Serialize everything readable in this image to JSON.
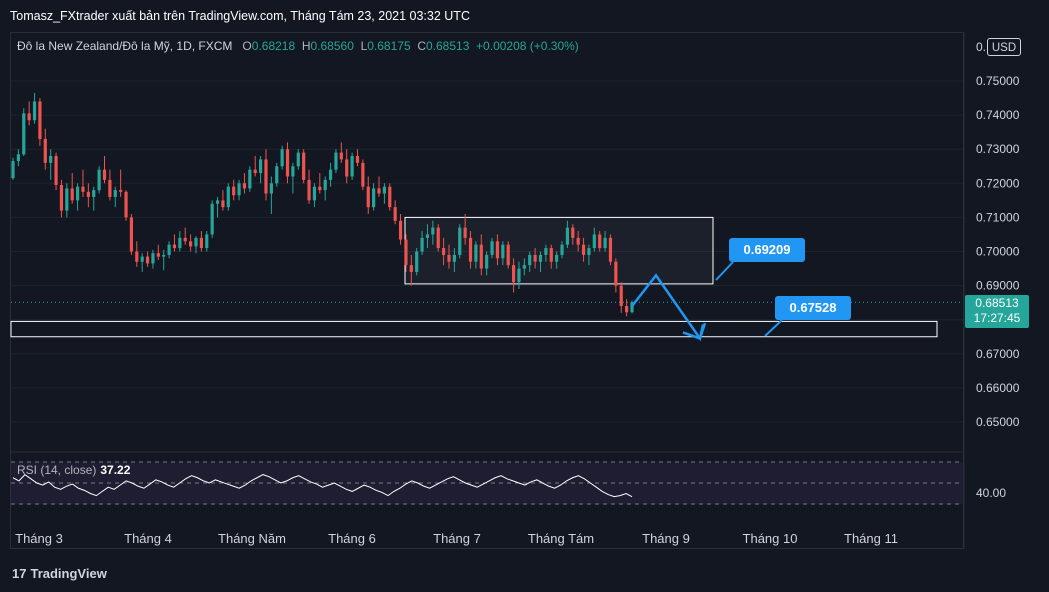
{
  "header": {
    "author_line": "Tomasz_FXtrader xuất bản trên TradingView.com, Tháng Tám 23, 2021 03:32 UTC"
  },
  "legend": {
    "symbol": "Đô la New Zealand/Đô la Mỹ, 1D, FXCM",
    "o_label": "O",
    "o_value": "0.68218",
    "h_label": "H",
    "h_value": "0.68560",
    "l_label": "L",
    "l_value": "0.68175",
    "c_label": "C",
    "c_value": "0.68513",
    "change": "+0.00208 (+0.30%)"
  },
  "price_axis": {
    "currency": "USD",
    "top_label": "0.",
    "labels": [
      "0.75000",
      "0.74000",
      "0.73000",
      "0.72000",
      "0.71000",
      "0.70000",
      "0.69000",
      "0.67000",
      "0.66000",
      "0.65000"
    ],
    "current_price": "0.68513",
    "countdown": "17:27:45"
  },
  "time_axis": [
    "Tháng 3",
    "Tháng 4",
    "Tháng Năm",
    "Tháng 6",
    "Tháng 7",
    "Tháng Tám",
    "Tháng 9",
    "Tháng 10",
    "Tháng 11"
  ],
  "annotations": {
    "callout_upper": "0.69209",
    "callout_lower": "0.67528"
  },
  "rsi": {
    "label": "RSI (14, close)",
    "value": "37.22",
    "axis_label": "40.00"
  },
  "footer": {
    "logo_text": "TradingView",
    "logo_mark": "17"
  },
  "colors": {
    "up": "#26a69a",
    "down": "#ef5350",
    "accent": "#2196f3",
    "background": "#131722"
  },
  "chart_data": {
    "type": "candlestick",
    "symbol": "NZD/USD",
    "timeframe": "1D",
    "ylim": [
      0.643,
      0.755
    ],
    "candles_ohlc": [
      [
        0.7215,
        0.7275,
        0.721,
        0.7265
      ],
      [
        0.7265,
        0.73,
        0.725,
        0.7285
      ],
      [
        0.7285,
        0.742,
        0.728,
        0.7405
      ],
      [
        0.7405,
        0.744,
        0.737,
        0.7385
      ],
      [
        0.7385,
        0.7465,
        0.7375,
        0.744
      ],
      [
        0.744,
        0.745,
        0.731,
        0.733
      ],
      [
        0.733,
        0.736,
        0.724,
        0.726
      ],
      [
        0.726,
        0.73,
        0.721,
        0.728
      ],
      [
        0.728,
        0.729,
        0.718,
        0.7195
      ],
      [
        0.7195,
        0.721,
        0.71,
        0.712
      ],
      [
        0.712,
        0.72,
        0.71,
        0.7185
      ],
      [
        0.7185,
        0.723,
        0.714,
        0.715
      ],
      [
        0.715,
        0.72,
        0.712,
        0.719
      ],
      [
        0.719,
        0.724,
        0.716,
        0.7175
      ],
      [
        0.7175,
        0.72,
        0.713,
        0.716
      ],
      [
        0.716,
        0.719,
        0.712,
        0.718
      ],
      [
        0.718,
        0.725,
        0.717,
        0.724
      ],
      [
        0.724,
        0.728,
        0.72,
        0.721
      ],
      [
        0.721,
        0.724,
        0.715,
        0.716
      ],
      [
        0.716,
        0.719,
        0.713,
        0.718
      ],
      [
        0.718,
        0.724,
        0.716,
        0.7175
      ],
      [
        0.7175,
        0.718,
        0.709,
        0.71
      ],
      [
        0.71,
        0.711,
        0.699,
        0.7
      ],
      [
        0.7,
        0.703,
        0.6955,
        0.697
      ],
      [
        0.697,
        0.6995,
        0.694,
        0.6985
      ],
      [
        0.6985,
        0.7,
        0.6955,
        0.6965
      ],
      [
        0.6965,
        0.7005,
        0.695,
        0.6995
      ],
      [
        0.6995,
        0.702,
        0.6975,
        0.6985
      ],
      [
        0.6985,
        0.7005,
        0.6945,
        0.699
      ],
      [
        0.699,
        0.703,
        0.698,
        0.702
      ],
      [
        0.702,
        0.705,
        0.7,
        0.701
      ],
      [
        0.701,
        0.706,
        0.7,
        0.704
      ],
      [
        0.704,
        0.707,
        0.702,
        0.703
      ],
      [
        0.703,
        0.705,
        0.7,
        0.7015
      ],
      [
        0.7015,
        0.7045,
        0.6995,
        0.704
      ],
      [
        0.704,
        0.706,
        0.7,
        0.701
      ],
      [
        0.701,
        0.706,
        0.7,
        0.705
      ],
      [
        0.705,
        0.715,
        0.704,
        0.714
      ],
      [
        0.714,
        0.716,
        0.71,
        0.715
      ],
      [
        0.715,
        0.718,
        0.712,
        0.713
      ],
      [
        0.713,
        0.72,
        0.712,
        0.719
      ],
      [
        0.719,
        0.721,
        0.715,
        0.7165
      ],
      [
        0.7165,
        0.721,
        0.715,
        0.72
      ],
      [
        0.72,
        0.723,
        0.717,
        0.7185
      ],
      [
        0.7185,
        0.725,
        0.7175,
        0.724
      ],
      [
        0.724,
        0.728,
        0.722,
        0.723
      ],
      [
        0.723,
        0.728,
        0.72,
        0.727
      ],
      [
        0.727,
        0.73,
        0.715,
        0.717
      ],
      [
        0.717,
        0.722,
        0.711,
        0.72
      ],
      [
        0.72,
        0.726,
        0.719,
        0.725
      ],
      [
        0.725,
        0.731,
        0.724,
        0.73
      ],
      [
        0.73,
        0.732,
        0.72,
        0.722
      ],
      [
        0.722,
        0.726,
        0.717,
        0.725
      ],
      [
        0.725,
        0.73,
        0.724,
        0.729
      ],
      [
        0.729,
        0.73,
        0.72,
        0.721
      ],
      [
        0.721,
        0.724,
        0.714,
        0.715
      ],
      [
        0.715,
        0.72,
        0.713,
        0.719
      ],
      [
        0.719,
        0.723,
        0.717,
        0.718
      ],
      [
        0.718,
        0.722,
        0.715,
        0.721
      ],
      [
        0.721,
        0.726,
        0.719,
        0.724
      ],
      [
        0.724,
        0.73,
        0.723,
        0.729
      ],
      [
        0.729,
        0.732,
        0.726,
        0.727
      ],
      [
        0.727,
        0.73,
        0.72,
        0.722
      ],
      [
        0.722,
        0.729,
        0.721,
        0.728
      ],
      [
        0.728,
        0.73,
        0.725,
        0.726
      ],
      [
        0.726,
        0.727,
        0.718,
        0.719
      ],
      [
        0.719,
        0.722,
        0.711,
        0.713
      ],
      [
        0.713,
        0.72,
        0.712,
        0.7185
      ],
      [
        0.7185,
        0.722,
        0.716,
        0.717
      ],
      [
        0.717,
        0.72,
        0.714,
        0.719
      ],
      [
        0.719,
        0.72,
        0.712,
        0.713
      ],
      [
        0.713,
        0.715,
        0.708,
        0.709
      ],
      [
        0.709,
        0.711,
        0.702,
        0.7035
      ],
      [
        0.7035,
        0.705,
        0.694,
        0.696
      ],
      [
        0.696,
        0.699,
        0.69,
        0.694
      ],
      [
        0.694,
        0.701,
        0.693,
        0.7
      ],
      [
        0.7,
        0.706,
        0.699,
        0.704
      ],
      [
        0.704,
        0.708,
        0.701,
        0.705
      ],
      [
        0.705,
        0.709,
        0.702,
        0.707
      ],
      [
        0.707,
        0.708,
        0.7,
        0.701
      ],
      [
        0.701,
        0.704,
        0.696,
        0.699
      ],
      [
        0.699,
        0.702,
        0.695,
        0.697
      ],
      [
        0.697,
        0.701,
        0.694,
        0.699
      ],
      [
        0.699,
        0.708,
        0.698,
        0.707
      ],
      [
        0.707,
        0.711,
        0.702,
        0.704
      ],
      [
        0.704,
        0.706,
        0.695,
        0.697
      ],
      [
        0.697,
        0.703,
        0.695,
        0.702
      ],
      [
        0.702,
        0.705,
        0.693,
        0.695
      ],
      [
        0.695,
        0.7,
        0.693,
        0.699
      ],
      [
        0.699,
        0.704,
        0.698,
        0.703
      ],
      [
        0.703,
        0.705,
        0.696,
        0.698
      ],
      [
        0.698,
        0.703,
        0.696,
        0.702
      ],
      [
        0.702,
        0.703,
        0.695,
        0.696
      ],
      [
        0.696,
        0.698,
        0.688,
        0.691
      ],
      [
        0.691,
        0.697,
        0.689,
        0.695
      ],
      [
        0.695,
        0.698,
        0.693,
        0.696
      ],
      [
        0.696,
        0.7,
        0.694,
        0.699
      ],
      [
        0.699,
        0.701,
        0.695,
        0.697
      ],
      [
        0.697,
        0.7,
        0.694,
        0.699
      ],
      [
        0.699,
        0.702,
        0.697,
        0.701
      ],
      [
        0.701,
        0.702,
        0.695,
        0.697
      ],
      [
        0.697,
        0.7,
        0.695,
        0.699
      ],
      [
        0.699,
        0.703,
        0.698,
        0.702
      ],
      [
        0.702,
        0.709,
        0.701,
        0.707
      ],
      [
        0.707,
        0.708,
        0.702,
        0.704
      ],
      [
        0.704,
        0.706,
        0.7,
        0.702
      ],
      [
        0.702,
        0.704,
        0.697,
        0.699
      ],
      [
        0.699,
        0.702,
        0.696,
        0.701
      ],
      [
        0.701,
        0.707,
        0.7,
        0.705
      ],
      [
        0.705,
        0.706,
        0.7,
        0.701
      ],
      [
        0.701,
        0.706,
        0.7,
        0.704
      ],
      [
        0.704,
        0.705,
        0.696,
        0.697
      ],
      [
        0.697,
        0.698,
        0.688,
        0.69
      ],
      [
        0.69,
        0.691,
        0.682,
        0.684
      ],
      [
        0.684,
        0.686,
        0.681,
        0.6822
      ],
      [
        0.6822,
        0.6856,
        0.6818,
        0.6851
      ]
    ],
    "zones": [
      {
        "label": "range",
        "from": 0.6905,
        "to": 0.71
      },
      {
        "label": "target",
        "from": 0.675,
        "to": 0.6795
      }
    ],
    "projection_path": [
      0.684,
      0.693,
      0.6745,
      0.679
    ],
    "rsi_series": [
      55,
      52,
      58,
      54,
      50,
      48,
      51,
      46,
      44,
      47,
      49,
      45,
      43,
      40,
      38,
      42,
      46,
      44,
      48,
      52,
      50,
      47,
      45,
      49,
      53,
      51,
      48,
      46,
      50,
      54,
      57,
      55,
      52,
      50,
      53,
      51,
      49,
      47,
      45,
      48,
      52,
      55,
      58,
      56,
      53,
      50,
      52,
      55,
      57,
      54,
      51,
      49,
      46,
      48,
      50,
      47,
      44,
      42,
      45,
      48,
      46,
      43,
      41,
      38,
      42,
      45,
      49,
      52,
      50,
      47,
      45,
      48,
      51,
      54,
      56,
      53,
      50,
      48,
      46,
      49,
      52,
      55,
      57,
      54,
      52,
      50,
      48,
      51,
      53,
      50,
      47,
      45,
      48,
      52,
      55,
      57,
      54,
      50,
      46,
      42,
      39,
      37,
      38,
      40,
      37
    ]
  }
}
